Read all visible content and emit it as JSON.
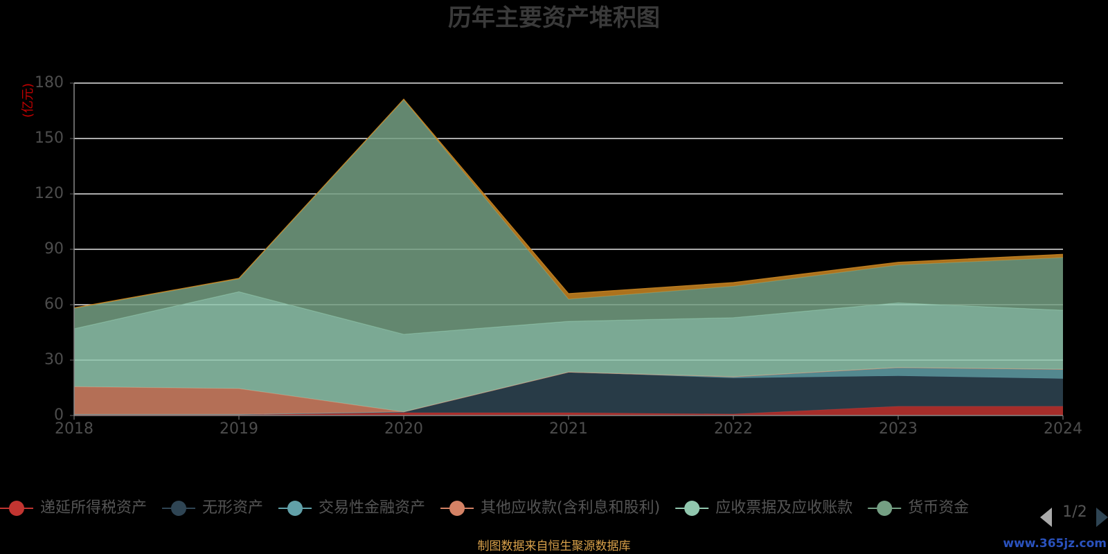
{
  "chart_data": {
    "type": "area",
    "stacked": true,
    "title": "历年主要资产堆积图",
    "ylabel": "(亿元)",
    "x": [
      "2018",
      "2019",
      "2020",
      "2021",
      "2022",
      "2023",
      "2024"
    ],
    "ylim": [
      0,
      180
    ],
    "yticks": [
      0,
      30,
      60,
      90,
      120,
      150,
      180
    ],
    "grid": true,
    "series": [
      {
        "name": "递延所得税资产",
        "color": "#c23531",
        "values": [
          0.4,
          0.4,
          1.5,
          1.5,
          0.8,
          5,
          5
        ]
      },
      {
        "name": "无形资产",
        "color": "#2f4554",
        "values": [
          0.2,
          0.2,
          0.5,
          22,
          19.5,
          16.5,
          15
        ]
      },
      {
        "name": "交易性金融资产",
        "color": "#61a0a8",
        "values": [
          0,
          0,
          0,
          0,
          0.7,
          4.5,
          5
        ]
      },
      {
        "name": "其他应收款(含利息和股利)",
        "color": "#d48265",
        "values": [
          15,
          14,
          0,
          0,
          0,
          0,
          0
        ]
      },
      {
        "name": "应收票据及应收账款",
        "color": "#91c7ae",
        "values": [
          31.4,
          52.4,
          42,
          27.5,
          32,
          35,
          32
        ]
      },
      {
        "name": "货币资金",
        "color": "#749f83",
        "values": [
          11,
          7,
          127,
          12,
          17,
          20.5,
          28.5
        ]
      },
      {
        "name": "",
        "color": "#ca8622",
        "values": [
          0.3,
          0.3,
          0.3,
          3,
          2,
          1.5,
          1.8
        ]
      }
    ],
    "legend": {
      "position": "bottom",
      "page": "1/2"
    }
  },
  "footer": {
    "source": "制图数据来自恒生聚源数据库",
    "watermark": "www.365jz.com"
  }
}
